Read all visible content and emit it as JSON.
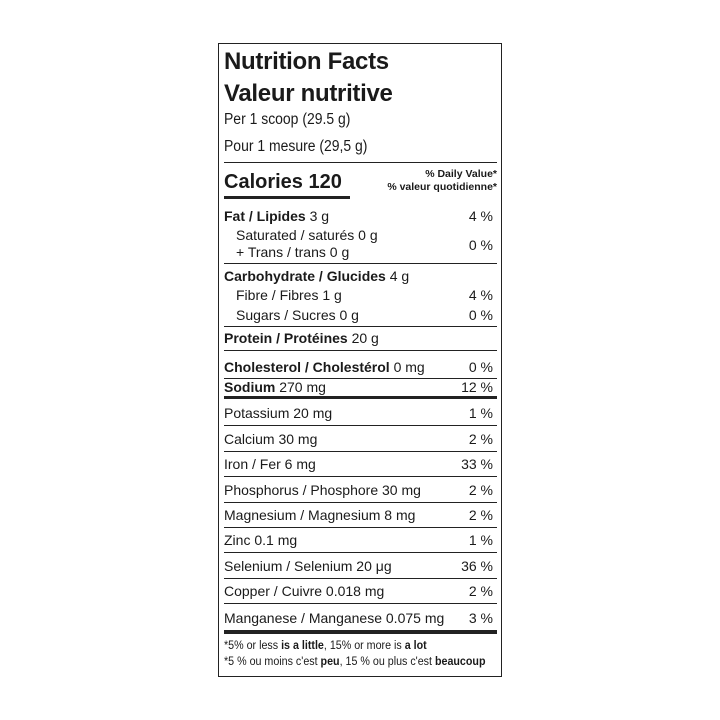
{
  "title_en": "Nutrition Facts",
  "title_fr": "Valeur nutritive",
  "serving_en": "Per 1 scoop (29.5 g)",
  "serving_fr": "Pour 1 mesure (29,5 g)",
  "calories_label": "Calories 120",
  "dv_header_en": "% Daily Value*",
  "dv_header_fr": "% valeur quotidienne*",
  "rows": [
    {
      "bold": "Fat / Lipides",
      "amount": " 3 g",
      "dv": "4 %"
    },
    {
      "bold": "",
      "amount": "Saturated / saturés 0 g",
      "dv": ""
    },
    {
      "bold": "",
      "amount": "+ Trans / trans 0 g",
      "dv": "0 %"
    },
    {
      "bold": "Carbohydrate / Glucides",
      "amount": " 4 g",
      "dv": ""
    },
    {
      "bold": "",
      "amount": "Fibre / Fibres 1 g",
      "dv": "4 %"
    },
    {
      "bold": "",
      "amount": "Sugars / Sucres 0 g",
      "dv": "0 %"
    },
    {
      "bold": "Protein / Protéines",
      "amount": " 20 g",
      "dv": ""
    },
    {
      "bold": "Cholesterol / Cholestérol",
      "amount": " 0 mg",
      "dv": "0 %"
    },
    {
      "bold": "Sodium",
      "amount": " 270 mg",
      "dv": "12 %"
    },
    {
      "bold": "",
      "amount": "Potassium 20 mg",
      "dv": "1 %"
    },
    {
      "bold": "",
      "amount": "Calcium 30 mg",
      "dv": "2 %"
    },
    {
      "bold": "",
      "amount": "Iron / Fer 6 mg",
      "dv": "33 %"
    },
    {
      "bold": "",
      "amount": "Phosphorus / Phosphore 30 mg",
      "dv": "2 %"
    },
    {
      "bold": "",
      "amount": "Magnesium / Magnesium 8 mg",
      "dv": "2 %"
    },
    {
      "bold": "",
      "amount": "Zinc 0.1 mg",
      "dv": "1 %"
    },
    {
      "bold": "",
      "amount": "Selenium / Selenium 20 μg",
      "dv": "36 %"
    },
    {
      "bold": "",
      "amount": "Copper / Cuivre 0.018 mg",
      "dv": "2 %"
    },
    {
      "bold": "",
      "amount": "Manganese / Manganese 0.075 mg",
      "dv": "3 %"
    }
  ],
  "footnote_en": {
    "a": "*5% or less ",
    "b": "is a little",
    "c": ", 15% or more is ",
    "d": "a lot"
  },
  "footnote_fr": {
    "a": "*5 % ou moins c'est ",
    "b": "peu",
    "c": ", 15 % ou plus c'est ",
    "d": "beaucoup"
  }
}
